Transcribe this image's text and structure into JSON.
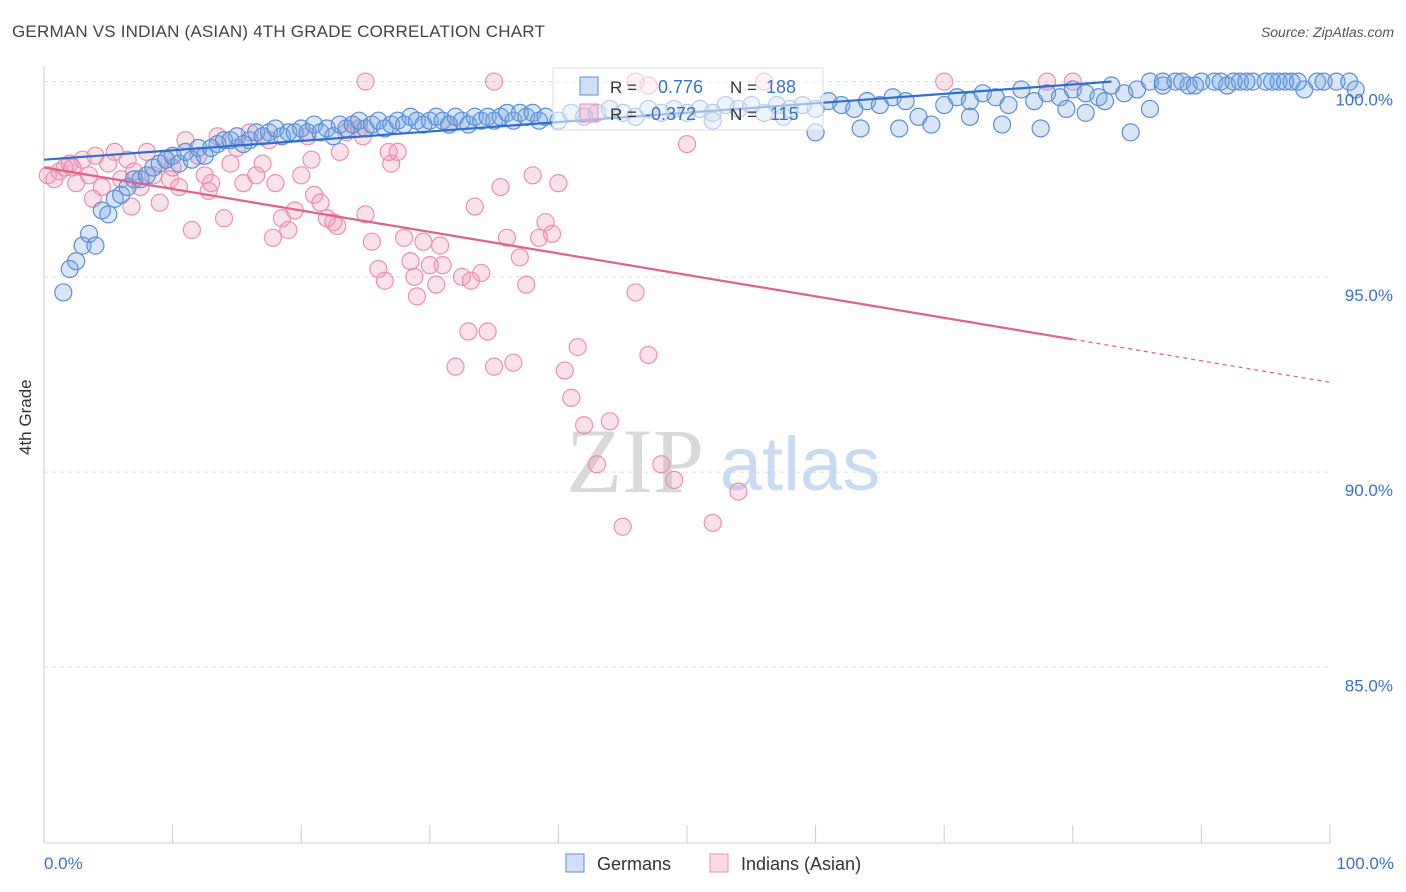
{
  "title": "GERMAN VS INDIAN (ASIAN) 4TH GRADE CORRELATION CHART",
  "source": "Source: ZipAtlas.com",
  "chart_data": {
    "type": "scatter",
    "ylabel": "4th Grade",
    "xlim": [
      0,
      100
    ],
    "ylim": [
      80.5,
      100.4
    ],
    "x_tick_labels": [
      "0.0%",
      "100.0%"
    ],
    "y_ticks": [
      {
        "value": 100,
        "label": "100.0%"
      },
      {
        "value": 95,
        "label": "95.0%"
      },
      {
        "value": 90,
        "label": "90.0%"
      },
      {
        "value": 85,
        "label": "85.0%"
      }
    ],
    "grid": true,
    "watermark": {
      "zip": "ZIP",
      "atlas": "atlas"
    },
    "colors": {
      "german_fill": "rgba(120,166,230,0.28)",
      "german_stroke": "#5b8fd6",
      "german_line": "#2f6fd0",
      "indian_fill": "rgba(240,150,180,0.28)",
      "indian_stroke": "#eb8fb0",
      "indian_line": "#e0608e",
      "axis_text": "#3a72c8"
    },
    "legend_stats": {
      "rows": [
        {
          "r_label": "R =",
          "r_value": "0.776",
          "n_label": "N =",
          "n_value": "188"
        },
        {
          "r_label": "R =",
          "r_value": "-0.372",
          "n_label": "N =",
          "n_value": "115"
        }
      ]
    },
    "series": [
      {
        "name": "Germans",
        "trend": {
          "x0": 0,
          "y0": 98.0,
          "x1": 83,
          "y1": 100.0
        },
        "points": [
          [
            1.5,
            94.6
          ],
          [
            2,
            95.2
          ],
          [
            2.5,
            95.4
          ],
          [
            3,
            95.8
          ],
          [
            3.5,
            96.1
          ],
          [
            4,
            95.8
          ],
          [
            4.5,
            96.7
          ],
          [
            5,
            96.6
          ],
          [
            5.5,
            97.0
          ],
          [
            6,
            97.1
          ],
          [
            6.5,
            97.3
          ],
          [
            7,
            97.5
          ],
          [
            7.5,
            97.5
          ],
          [
            8,
            97.6
          ],
          [
            8.5,
            97.8
          ],
          [
            9,
            97.9
          ],
          [
            9.5,
            98.0
          ],
          [
            10,
            98.1
          ],
          [
            10.5,
            97.9
          ],
          [
            11,
            98.2
          ],
          [
            11.5,
            98.0
          ],
          [
            12,
            98.3
          ],
          [
            12.5,
            98.1
          ],
          [
            13,
            98.3
          ],
          [
            13.5,
            98.4
          ],
          [
            14,
            98.5
          ],
          [
            14.5,
            98.5
          ],
          [
            15,
            98.6
          ],
          [
            15.5,
            98.4
          ],
          [
            16,
            98.5
          ],
          [
            16.5,
            98.7
          ],
          [
            17,
            98.6
          ],
          [
            17.5,
            98.7
          ],
          [
            18,
            98.8
          ],
          [
            18.5,
            98.6
          ],
          [
            19,
            98.7
          ],
          [
            19.5,
            98.7
          ],
          [
            20,
            98.8
          ],
          [
            20.5,
            98.7
          ],
          [
            21,
            98.9
          ],
          [
            21.5,
            98.7
          ],
          [
            22,
            98.8
          ],
          [
            22.5,
            98.6
          ],
          [
            23,
            98.9
          ],
          [
            23.5,
            98.8
          ],
          [
            24,
            98.9
          ],
          [
            24.5,
            99.0
          ],
          [
            25,
            98.8
          ],
          [
            25.5,
            98.9
          ],
          [
            26,
            99.0
          ],
          [
            26.5,
            98.8
          ],
          [
            27,
            98.9
          ],
          [
            27.5,
            99.0
          ],
          [
            28,
            98.9
          ],
          [
            28.5,
            99.1
          ],
          [
            29,
            99.0
          ],
          [
            29.5,
            98.9
          ],
          [
            30,
            99.0
          ],
          [
            30.5,
            99.1
          ],
          [
            31,
            99.0
          ],
          [
            31.5,
            98.9
          ],
          [
            32,
            99.1
          ],
          [
            32.5,
            99.0
          ],
          [
            33,
            98.9
          ],
          [
            33.5,
            99.1
          ],
          [
            34,
            99.0
          ],
          [
            34.5,
            99.1
          ],
          [
            35,
            99.0
          ],
          [
            35.5,
            99.1
          ],
          [
            36,
            99.2
          ],
          [
            36.5,
            99.0
          ],
          [
            37,
            99.2
          ],
          [
            37.5,
            99.1
          ],
          [
            38,
            99.2
          ],
          [
            38.5,
            99.0
          ],
          [
            39,
            99.1
          ],
          [
            40,
            99.0
          ],
          [
            41,
            99.2
          ],
          [
            42,
            99.1
          ],
          [
            43,
            99.2
          ],
          [
            44,
            99.3
          ],
          [
            45,
            99.2
          ],
          [
            46,
            99.1
          ],
          [
            47,
            99.3
          ],
          [
            48,
            99.2
          ],
          [
            49,
            99.3
          ],
          [
            50,
            99.2
          ],
          [
            51,
            99.3
          ],
          [
            52,
            99.2
          ],
          [
            53,
            99.4
          ],
          [
            54,
            99.3
          ],
          [
            55,
            99.4
          ],
          [
            56,
            99.2
          ],
          [
            57,
            99.4
          ],
          [
            58,
            99.3
          ],
          [
            59,
            99.4
          ],
          [
            60,
            99.3
          ],
          [
            61,
            99.5
          ],
          [
            62,
            99.4
          ],
          [
            63,
            99.3
          ],
          [
            64,
            99.5
          ],
          [
            65,
            99.4
          ],
          [
            66,
            99.6
          ],
          [
            67,
            99.5
          ],
          [
            68,
            99.1
          ],
          [
            69,
            98.9
          ],
          [
            70,
            99.4
          ],
          [
            71,
            99.6
          ],
          [
            72,
            99.5
          ],
          [
            73,
            99.7
          ],
          [
            74,
            99.6
          ],
          [
            75,
            99.4
          ],
          [
            76,
            99.8
          ],
          [
            77,
            99.5
          ],
          [
            78,
            99.7
          ],
          [
            79,
            99.6
          ],
          [
            80,
            99.8
          ],
          [
            81,
            99.7
          ],
          [
            82,
            99.6
          ],
          [
            83,
            99.9
          ],
          [
            84,
            99.7
          ],
          [
            85,
            99.8
          ],
          [
            86,
            100.0
          ],
          [
            87,
            99.9
          ],
          [
            88,
            100.0
          ],
          [
            89,
            99.9
          ],
          [
            90,
            100.0
          ],
          [
            91,
            100.0
          ],
          [
            92,
            99.9
          ],
          [
            93,
            100.0
          ],
          [
            94,
            100.0
          ],
          [
            95,
            100.0
          ],
          [
            96,
            100.0
          ],
          [
            97,
            100.0
          ],
          [
            98,
            99.8
          ],
          [
            99,
            100.0
          ],
          [
            63.5,
            98.8
          ],
          [
            60,
            98.7
          ],
          [
            66.5,
            98.8
          ],
          [
            57.5,
            99.1
          ],
          [
            52,
            99.0
          ],
          [
            72,
            99.1
          ],
          [
            74.5,
            98.9
          ],
          [
            77.5,
            98.8
          ],
          [
            79.5,
            99.3
          ],
          [
            82.5,
            99.5
          ],
          [
            84.5,
            98.7
          ],
          [
            81,
            99.2
          ],
          [
            86,
            99.3
          ],
          [
            87,
            100.0
          ],
          [
            88.5,
            100.0
          ],
          [
            89.5,
            99.9
          ],
          [
            91.5,
            100.0
          ],
          [
            92.5,
            100.0
          ],
          [
            93.5,
            100.0
          ],
          [
            95.5,
            100.0
          ],
          [
            96.5,
            100.0
          ],
          [
            97.5,
            100.0
          ],
          [
            99.5,
            100.0
          ],
          [
            100.5,
            100.0
          ],
          [
            101.5,
            100.0
          ],
          [
            102,
            99.8
          ]
        ]
      },
      {
        "name": "Indians (Asian)",
        "trend": {
          "x0": 0,
          "y0": 97.8,
          "x1": 80,
          "y1": 93.4
        },
        "trend_dashed": {
          "x0": 80,
          "y0": 93.4,
          "x1": 100,
          "y1": 92.3
        },
        "points": [
          [
            0.3,
            97.6
          ],
          [
            0.8,
            97.5
          ],
          [
            1.2,
            97.7
          ],
          [
            1.6,
            97.8
          ],
          [
            2,
            97.9
          ],
          [
            2.5,
            97.4
          ],
          [
            3,
            98.0
          ],
          [
            3.5,
            97.6
          ],
          [
            4,
            98.1
          ],
          [
            4.5,
            97.3
          ],
          [
            5,
            97.9
          ],
          [
            5.5,
            98.2
          ],
          [
            6,
            97.5
          ],
          [
            6.5,
            98.0
          ],
          [
            7,
            97.7
          ],
          [
            7.5,
            97.3
          ],
          [
            8,
            98.2
          ],
          [
            8.5,
            97.6
          ],
          [
            9,
            96.9
          ],
          [
            9.5,
            98.0
          ],
          [
            10,
            97.8
          ],
          [
            10.5,
            97.3
          ],
          [
            11,
            98.5
          ],
          [
            11.5,
            96.2
          ],
          [
            12,
            98.1
          ],
          [
            12.5,
            97.6
          ],
          [
            13,
            97.4
          ],
          [
            13.5,
            98.6
          ],
          [
            14,
            96.5
          ],
          [
            14.5,
            97.9
          ],
          [
            15,
            98.3
          ],
          [
            15.5,
            97.4
          ],
          [
            16,
            98.7
          ],
          [
            16.5,
            97.6
          ],
          [
            17,
            97.9
          ],
          [
            17.5,
            98.5
          ],
          [
            18,
            97.4
          ],
          [
            18.5,
            96.5
          ],
          [
            19,
            96.2
          ],
          [
            19.5,
            96.7
          ],
          [
            20,
            97.6
          ],
          [
            20.5,
            98.6
          ],
          [
            21,
            97.1
          ],
          [
            21.5,
            96.9
          ],
          [
            22,
            96.5
          ],
          [
            22.5,
            96.4
          ],
          [
            23,
            98.2
          ],
          [
            23.5,
            98.7
          ],
          [
            24,
            98.9
          ],
          [
            24.5,
            98.8
          ],
          [
            25,
            96.6
          ],
          [
            25.5,
            95.9
          ],
          [
            26,
            95.2
          ],
          [
            26.5,
            94.9
          ],
          [
            27,
            97.9
          ],
          [
            27.5,
            98.2
          ],
          [
            28,
            96.0
          ],
          [
            28.5,
            95.4
          ],
          [
            29,
            94.5
          ],
          [
            29.5,
            95.9
          ],
          [
            30,
            95.3
          ],
          [
            30.5,
            94.8
          ],
          [
            31,
            95.3
          ],
          [
            31.5,
            98.9
          ],
          [
            32,
            92.7
          ],
          [
            32.5,
            95.0
          ],
          [
            33,
            93.6
          ],
          [
            33.5,
            96.8
          ],
          [
            34,
            95.1
          ],
          [
            34.5,
            93.6
          ],
          [
            35,
            92.7
          ],
          [
            35.5,
            97.3
          ],
          [
            36,
            96.0
          ],
          [
            36.5,
            92.8
          ],
          [
            37,
            95.5
          ],
          [
            37.5,
            94.8
          ],
          [
            38,
            97.6
          ],
          [
            38.5,
            96.0
          ],
          [
            39,
            96.4
          ],
          [
            39.5,
            96.1
          ],
          [
            40,
            97.4
          ],
          [
            40.5,
            92.6
          ],
          [
            41,
            91.9
          ],
          [
            41.5,
            93.2
          ],
          [
            42,
            91.2
          ],
          [
            43,
            90.2
          ],
          [
            44,
            91.3
          ],
          [
            45,
            88.6
          ],
          [
            46,
            94.6
          ],
          [
            47,
            93.0
          ],
          [
            48,
            90.2
          ],
          [
            49,
            89.8
          ],
          [
            50,
            98.4
          ],
          [
            52,
            88.7
          ],
          [
            54,
            89.5
          ],
          [
            25,
            100.0
          ],
          [
            35,
            100.0
          ],
          [
            46,
            100.0
          ],
          [
            47,
            99.9
          ],
          [
            56,
            100.0
          ],
          [
            70,
            100.0
          ],
          [
            78,
            100.0
          ],
          [
            80,
            100.0
          ],
          [
            2.2,
            97.8
          ],
          [
            3.8,
            97.0
          ],
          [
            6.8,
            96.8
          ],
          [
            9.8,
            97.5
          ],
          [
            12.8,
            97.2
          ],
          [
            17.8,
            96.0
          ],
          [
            20.8,
            98.0
          ],
          [
            22.8,
            96.3
          ],
          [
            24.8,
            98.6
          ],
          [
            26.8,
            98.2
          ],
          [
            28.8,
            95.0
          ],
          [
            30.8,
            95.8
          ],
          [
            33.2,
            94.9
          ]
        ]
      }
    ]
  },
  "legend": [
    {
      "label": "Germans"
    },
    {
      "label": "Indians (Asian)"
    }
  ]
}
